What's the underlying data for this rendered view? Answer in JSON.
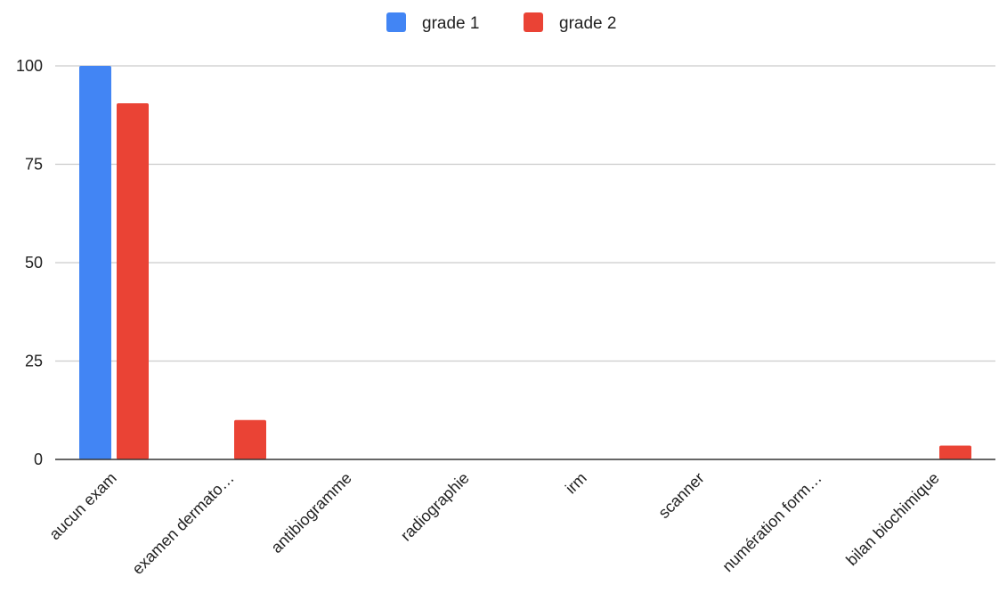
{
  "chart_data": {
    "type": "bar",
    "categories": [
      "aucun exam",
      "examen dermato…",
      "antibiogramme",
      "radiographie",
      "irm",
      "scanner",
      "numération form…",
      "bilan biochimique"
    ],
    "series": [
      {
        "name": "grade 1",
        "color": "#4285f4",
        "values": [
          100,
          0,
          0,
          0,
          0,
          0,
          0,
          0
        ]
      },
      {
        "name": "grade 2",
        "color": "#ea4335",
        "values": [
          90.5,
          10,
          0,
          0,
          0,
          0,
          0,
          3.5
        ]
      }
    ],
    "yticks": [
      0,
      25,
      50,
      75,
      100
    ],
    "ylim": [
      0,
      100
    ],
    "legend_position": "top-center",
    "grid": true
  }
}
